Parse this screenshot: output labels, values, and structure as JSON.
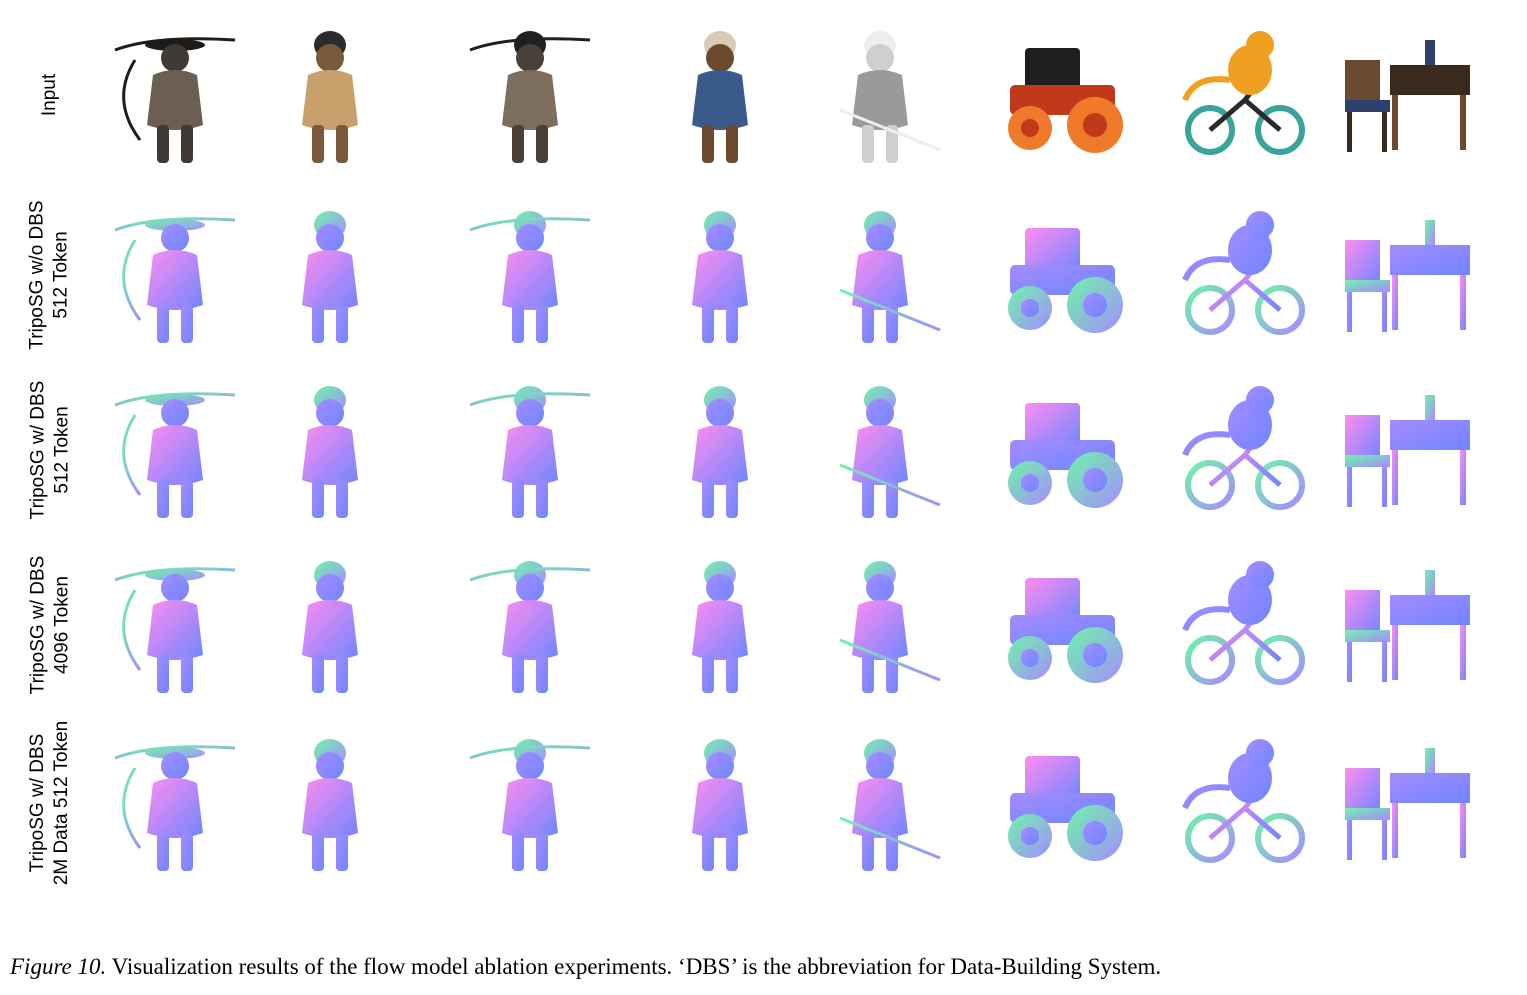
{
  "row_labels": [
    [
      "Input"
    ],
    [
      "TripoSG w/o DBS",
      "512 Token"
    ],
    [
      "TripoSG w/ DBS",
      "512 Token"
    ],
    [
      "TripoSG w/ DBS",
      "4096 Token"
    ],
    [
      "TripoSG w/ DBS",
      "2M Data 512 Token"
    ]
  ],
  "columns": [
    "samurai",
    "robot-boy",
    "warrior",
    "old-man",
    "sketch-figure",
    "tractor",
    "tiger-bicycle",
    "desk-chair"
  ],
  "caption": {
    "label": "Figure 10.",
    "text": " Visualization results of the flow model ablation experiments. ‘DBS’ is the abbreviation for Data-Building System."
  },
  "colors": {
    "normal_a": "#a58bff",
    "normal_b": "#6f86ff",
    "normal_c": "#6ef5a8",
    "normal_d": "#ff8cf0"
  }
}
